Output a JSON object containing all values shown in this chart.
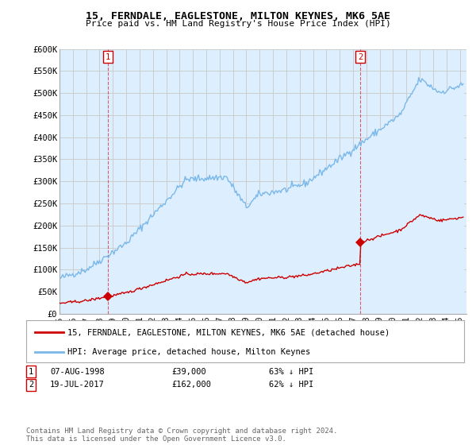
{
  "title": "15, FERNDALE, EAGLESTONE, MILTON KEYNES, MK6 5AE",
  "subtitle": "Price paid vs. HM Land Registry's House Price Index (HPI)",
  "ylim": [
    0,
    600000
  ],
  "yticks": [
    0,
    50000,
    100000,
    150000,
    200000,
    250000,
    300000,
    350000,
    400000,
    450000,
    500000,
    550000,
    600000
  ],
  "ytick_labels": [
    "£0",
    "£50K",
    "£100K",
    "£150K",
    "£200K",
    "£250K",
    "£300K",
    "£350K",
    "£400K",
    "£450K",
    "£500K",
    "£550K",
    "£600K"
  ],
  "sale1_year": 1998.62,
  "sale1_price": 39000,
  "sale2_year": 2017.54,
  "sale2_price": 162000,
  "hpi_color": "#7ab8e8",
  "hpi_fill_color": "#ddeeff",
  "sale_color": "#cc0000",
  "marker_color": "#cc0000",
  "grid_color": "#cccccc",
  "background_color": "#ffffff",
  "plot_bg_color": "#ddeeff",
  "legend_label_sale": "15, FERNDALE, EAGLESTONE, MILTON KEYNES, MK6 5AE (detached house)",
  "legend_label_hpi": "HPI: Average price, detached house, Milton Keynes",
  "footnote": "Contains HM Land Registry data © Crown copyright and database right 2024.\nThis data is licensed under the Open Government Licence v3.0."
}
